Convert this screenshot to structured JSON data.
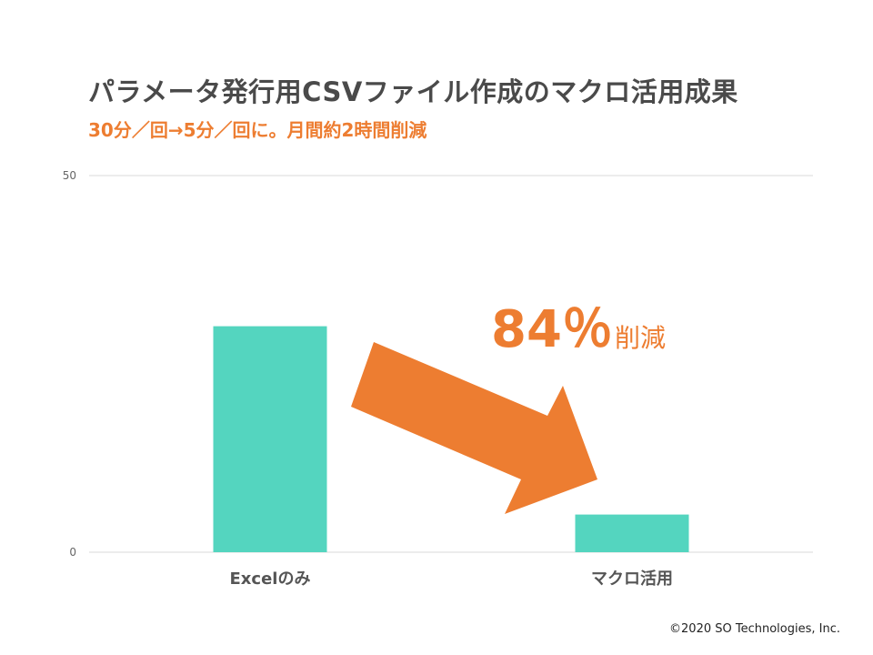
{
  "title": "パラメータ発行用CSVファイル作成のマクロ活用成果",
  "subtitle": "30分／回→5分／回に。月間約2時間削減",
  "copyright": "©2020 SO Technologies, Inc.",
  "chart_data": {
    "type": "bar",
    "categories": [
      "Excelのみ",
      "マクロ活用"
    ],
    "values": [
      30,
      5
    ],
    "ylim": [
      0,
      50
    ],
    "yticks": [
      "0",
      "50"
    ],
    "grid": true,
    "bar_color": "#54d5bf",
    "annotation": {
      "value": "84",
      "percent_sign": "％",
      "suffix": "削減",
      "color": "#ed7d31"
    }
  }
}
